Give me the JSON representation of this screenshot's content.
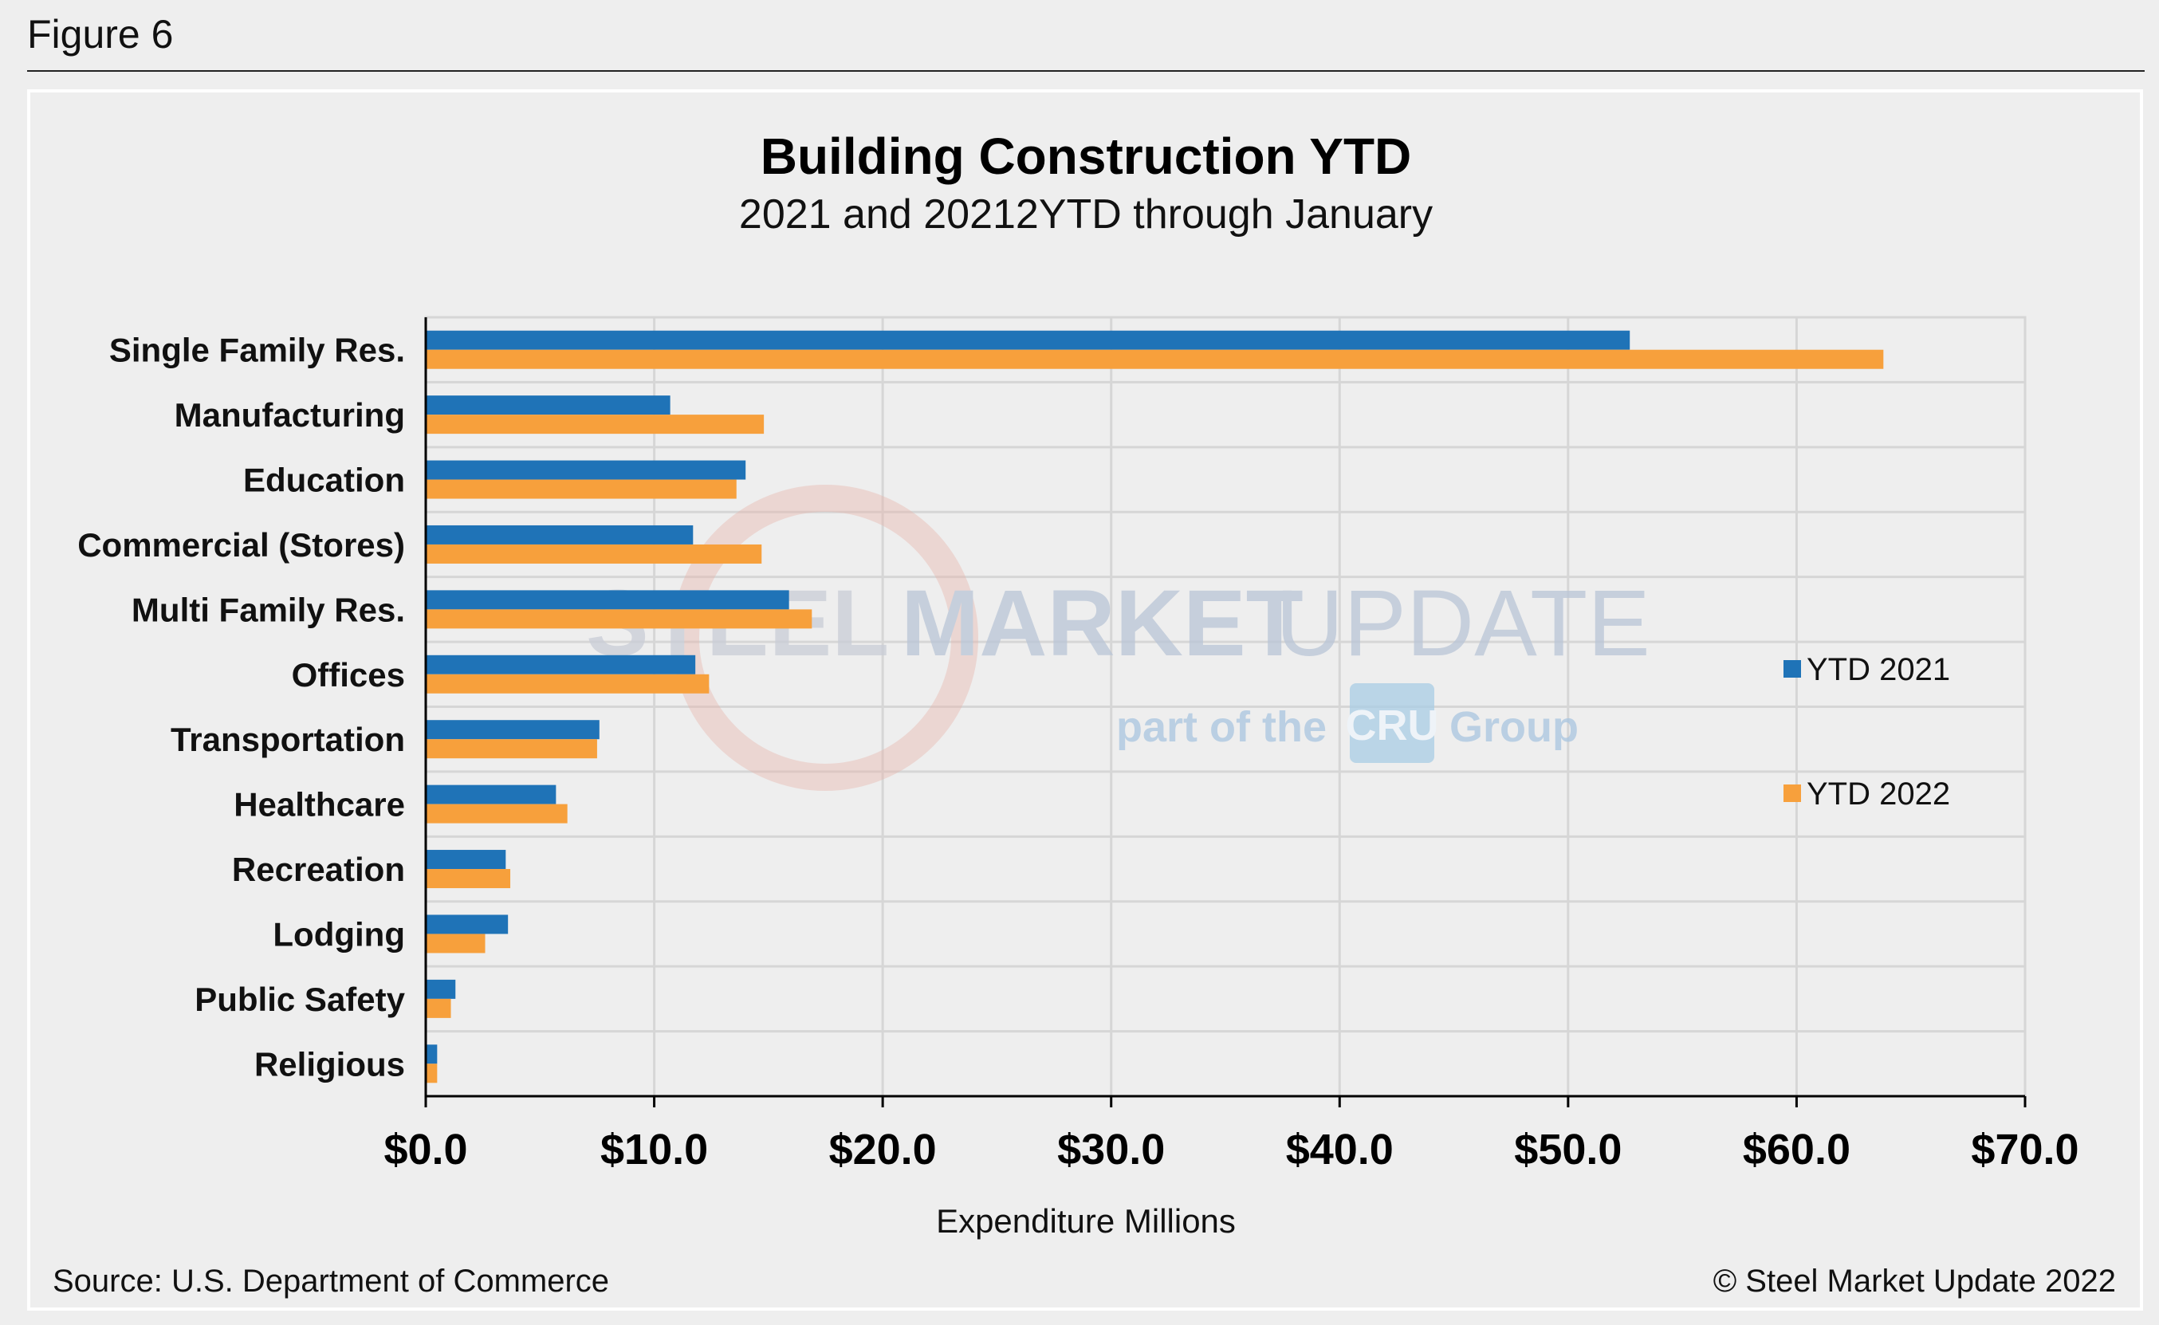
{
  "figure_label": "Figure 6",
  "source": "Source: U.S. Department of Commerce",
  "copyright": "© Steel Market Update 2022",
  "watermark": {
    "steel": "STEEL",
    "market": "MARKET",
    "update": "UPDATE",
    "part_of_the": "part of the",
    "cru": "CRU",
    "group": "Group"
  },
  "colors": {
    "ytd2021": "#1f73b7",
    "ytd2022": "#f7a03c"
  },
  "chart_data": {
    "type": "bar",
    "orientation": "horizontal",
    "title": "Building Construction YTD",
    "subtitle": "2021 and 20212YTD through January",
    "xlabel": "Expenditure Millions",
    "ylabel": "",
    "xlim": [
      0,
      70
    ],
    "xticks": [
      0,
      10,
      20,
      30,
      40,
      50,
      60,
      70
    ],
    "xtick_labels": [
      "$0.0",
      "$10.0",
      "$20.0",
      "$30.0",
      "$40.0",
      "$50.0",
      "$60.0",
      "$70.0"
    ],
    "grid": true,
    "legend_position": "right",
    "categories": [
      "Single Family Res.",
      "Manufacturing",
      "Education",
      "Commercial (Stores)",
      "Multi Family Res.",
      "Offices",
      "Transportation",
      "Healthcare",
      "Recreation",
      "Lodging",
      "Public Safety",
      "Religious"
    ],
    "series": [
      {
        "name": "YTD 2021",
        "values": [
          52.7,
          10.7,
          14.0,
          11.7,
          15.9,
          11.8,
          7.6,
          5.7,
          3.5,
          3.6,
          1.3,
          0.5
        ]
      },
      {
        "name": "YTD 2022",
        "values": [
          63.8,
          14.8,
          13.6,
          14.7,
          16.9,
          12.4,
          7.5,
          6.2,
          3.7,
          2.6,
          1.1,
          0.5
        ]
      }
    ]
  }
}
